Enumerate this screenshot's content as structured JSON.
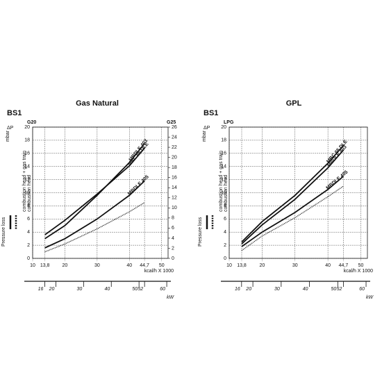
{
  "chart_data": [
    {
      "type": "line",
      "title": "Gas Natural",
      "label": "BS1",
      "ylabel": "ΔP",
      "yunit": "mbar",
      "ylabel_left": "G20",
      "ylabel_right": "G25",
      "legend_title": "Pressure loss",
      "legend_solid": "combustion head + gas train",
      "xlabel": "kcal/h X 1000",
      "x2label": "kW",
      "x": [
        13.8,
        20,
        30,
        40,
        44.7
      ],
      "series": [
        {
          "name": "MBDLE 403",
          "color": "#111111",
          "style": "solid",
          "values": [
            3.0,
            5.0,
            9.6,
            14.6,
            17.5
          ]
        },
        {
          "name": "MBC 65 DLE",
          "color": "#111111",
          "style": "solid",
          "values": [
            3.6,
            5.8,
            9.8,
            14.1,
            16.8
          ]
        },
        {
          "name": "MBDLE 405",
          "color": "#111111",
          "style": "solid",
          "values": [
            1.6,
            3.0,
            6.0,
            9.6,
            11.8
          ]
        },
        {
          "name": "combustion head",
          "color": "#111111",
          "style": "dotted",
          "values": [
            1.0,
            2.2,
            4.5,
            7.1,
            8.5
          ]
        }
      ],
      "xlim": [
        10,
        52
      ],
      "xticks": [
        10,
        {
          "value": 13.8,
          "label": "13,8"
        },
        20,
        30,
        40,
        {
          "value": 44.7,
          "label": "44,7"
        },
        50
      ],
      "x2lim": [
        11.63,
        60.48
      ],
      "x2ticks": [
        16,
        20,
        30,
        40,
        50,
        52,
        60
      ],
      "ylim": [
        0,
        20
      ],
      "yticks": [
        0,
        2,
        4,
        6,
        8,
        10,
        12,
        14,
        16,
        18,
        20
      ],
      "y2lim": [
        0,
        26
      ],
      "y2ticks": [
        0,
        2,
        4,
        6,
        8,
        10,
        12,
        14,
        16,
        18,
        20,
        22,
        24,
        26
      ],
      "grid": true
    },
    {
      "type": "line",
      "title": "GPL",
      "label": "BS1",
      "ylabel": "ΔP",
      "yunit": "mbar",
      "ylabel_left": "LPG",
      "legend_title": "Pressure loss",
      "legend_solid": "combustion head + gas train",
      "xlabel": "kcal/h X 1000",
      "x2label": "kW",
      "x": [
        13.8,
        20,
        30,
        40,
        44.7
      ],
      "series": [
        {
          "name": "MBC 65 DLE",
          "color": "#111111",
          "style": "solid",
          "values": [
            2.5,
            5.6,
            9.6,
            14.5,
            17.2
          ]
        },
        {
          "name": "MBDLE 403",
          "color": "#111111",
          "style": "solid",
          "values": [
            2.2,
            5.1,
            9.0,
            13.8,
            16.5
          ]
        },
        {
          "name": "MBDLE 405",
          "color": "#111111",
          "style": "solid",
          "values": [
            1.8,
            4.0,
            7.0,
            10.5,
            12.5
          ]
        },
        {
          "name": "combustion head",
          "color": "#111111",
          "style": "dotted",
          "values": [
            1.2,
            3.4,
            6.2,
            9.4,
            11.0
          ]
        }
      ],
      "xlim": [
        10,
        52
      ],
      "xticks": [
        10,
        {
          "value": 13.8,
          "label": "13,8"
        },
        20,
        30,
        40,
        {
          "value": 44.7,
          "label": "44,7"
        },
        50
      ],
      "x2lim": [
        11.63,
        60.48
      ],
      "x2ticks": [
        16,
        20,
        30,
        40,
        50,
        52,
        60
      ],
      "ylim": [
        0,
        20
      ],
      "yticks": [
        0,
        2,
        4,
        6,
        8,
        10,
        12,
        14,
        16,
        18,
        20
      ],
      "grid": true
    }
  ]
}
